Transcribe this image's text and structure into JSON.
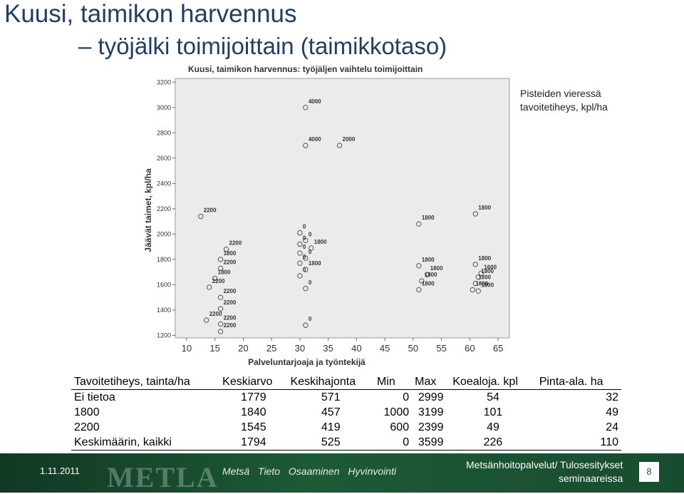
{
  "slide": {
    "title_line1": "Kuusi, taimikon harvennus",
    "title_line2": "– työjälki toimijoittain (taimikkotaso)",
    "note_line1": "Pisteiden vieressä",
    "note_line2": "tavoitetiheys, kpl/ha"
  },
  "chart_data": {
    "type": "scatter",
    "title": "Kuusi, taimikon harvennus: työjäljen vaihtelu toimijoittain",
    "xlabel": "Palveluntarjoaja ja työntekijä",
    "ylabel": "Jäävät taimet, kpl/ha",
    "xlim": [
      8,
      67
    ],
    "ylim": [
      1180,
      3230
    ],
    "x_ticks": [
      10,
      15,
      20,
      25,
      30,
      35,
      40,
      45,
      50,
      55,
      60,
      65
    ],
    "y_ticks": [
      1200,
      1400,
      1600,
      1800,
      2000,
      2200,
      2400,
      2600,
      2800,
      3000,
      3200
    ],
    "grid": false,
    "points": [
      {
        "x": 31,
        "y": 3000,
        "label": "4000"
      },
      {
        "x": 31,
        "y": 2700,
        "label": "4000"
      },
      {
        "x": 37,
        "y": 2700,
        "label": "2000"
      },
      {
        "x": 12.5,
        "y": 2140,
        "label": "2200"
      },
      {
        "x": 17,
        "y": 1880,
        "label": "2200"
      },
      {
        "x": 16,
        "y": 1800,
        "label": "1800"
      },
      {
        "x": 16,
        "y": 1730,
        "label": "2200"
      },
      {
        "x": 15,
        "y": 1650,
        "label": "1800"
      },
      {
        "x": 14,
        "y": 1580,
        "label": "2200"
      },
      {
        "x": 16,
        "y": 1500,
        "label": "2200"
      },
      {
        "x": 16,
        "y": 1410,
        "label": "2200"
      },
      {
        "x": 13.5,
        "y": 1320,
        "label": "2200"
      },
      {
        "x": 16,
        "y": 1290,
        "label": "2200"
      },
      {
        "x": 16,
        "y": 1230,
        "label": "2200"
      },
      {
        "x": 30,
        "y": 2010,
        "label": "0"
      },
      {
        "x": 31,
        "y": 1950,
        "label": "0"
      },
      {
        "x": 30,
        "y": 1920,
        "label": "0"
      },
      {
        "x": 32,
        "y": 1890,
        "label": "1800"
      },
      {
        "x": 30,
        "y": 1850,
        "label": "0"
      },
      {
        "x": 31,
        "y": 1810,
        "label": "0"
      },
      {
        "x": 30,
        "y": 1770,
        "label": "0"
      },
      {
        "x": 31,
        "y": 1720,
        "label": "1800"
      },
      {
        "x": 30,
        "y": 1670,
        "label": "0"
      },
      {
        "x": 31,
        "y": 1570,
        "label": "0"
      },
      {
        "x": 31,
        "y": 1280,
        "label": "0"
      },
      {
        "x": 51,
        "y": 2080,
        "label": "1800"
      },
      {
        "x": 61,
        "y": 2160,
        "label": "1800"
      },
      {
        "x": 51,
        "y": 1750,
        "label": "1800"
      },
      {
        "x": 52.5,
        "y": 1680,
        "label": "1800"
      },
      {
        "x": 51.5,
        "y": 1630,
        "label": "1800"
      },
      {
        "x": 51,
        "y": 1560,
        "label": "1800"
      },
      {
        "x": 61,
        "y": 1760,
        "label": "1800"
      },
      {
        "x": 62,
        "y": 1690,
        "label": "1600"
      },
      {
        "x": 61.5,
        "y": 1660,
        "label": "1800"
      },
      {
        "x": 61,
        "y": 1610,
        "label": "1800"
      },
      {
        "x": 60.5,
        "y": 1560,
        "label": "1800"
      },
      {
        "x": 61.5,
        "y": 1550,
        "label": "1800"
      }
    ]
  },
  "table": {
    "headers": [
      "Tavoitetiheys, tainta/ha",
      "Keskiarvo",
      "Keskihajonta",
      "Min",
      "Max",
      "Koealoja. kpl",
      "Pinta-ala. ha"
    ],
    "rows": [
      [
        "Ei tietoa",
        "1779",
        "571",
        "0",
        "2999",
        "54",
        "32"
      ],
      [
        "1800",
        "1840",
        "457",
        "1000",
        "3199",
        "101",
        "49"
      ],
      [
        "2200",
        "1545",
        "419",
        "600",
        "2399",
        "49",
        "24"
      ],
      [
        "Keskimäärin, kaikki",
        "1794",
        "525",
        "0",
        "3599",
        "226",
        "110"
      ]
    ]
  },
  "footer": {
    "date": "1.11.2011",
    "logo": "METLA",
    "slogan": "Metsä Tieto Osaaminen Hyvinvointi",
    "event_line1": "Metsänhoitopalvelut/ Tulosesitykset",
    "event_line2": "seminaareissa",
    "page": "8"
  },
  "colors": {
    "title": "#1f3f66",
    "plot_bg": "#ebebeb",
    "marker": "#555555",
    "chart_text": "#333333",
    "footer_green": "#1d5a36"
  }
}
